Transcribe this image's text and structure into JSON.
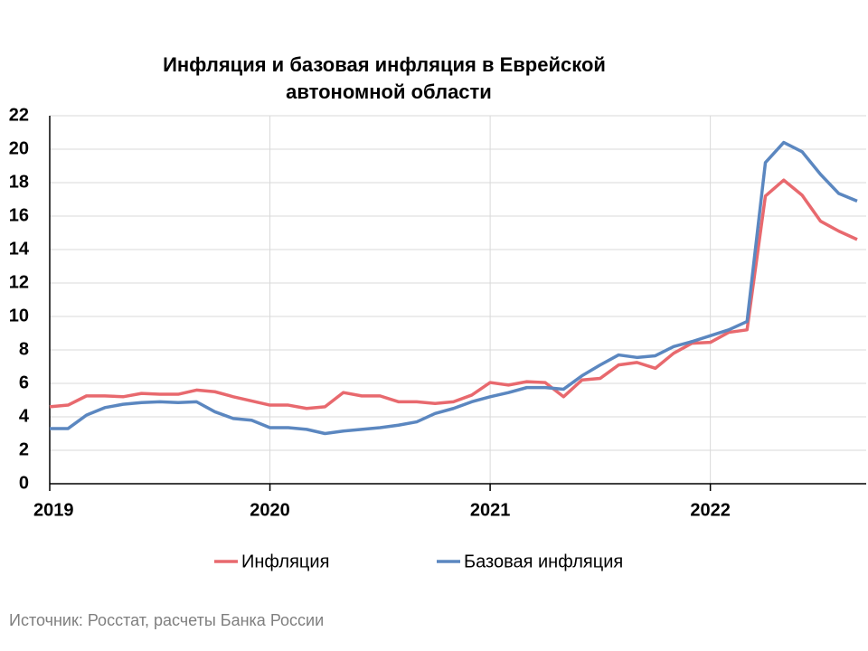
{
  "chart_data": {
    "type": "line",
    "title": [
      "Инфляция и базовая инфляция в Еврейской",
      "автономной области"
    ],
    "categories": [
      "2019",
      null,
      null,
      null,
      null,
      null,
      null,
      null,
      null,
      null,
      null,
      null,
      "2020",
      null,
      null,
      null,
      null,
      null,
      null,
      null,
      null,
      null,
      null,
      null,
      "2021",
      null,
      null,
      null,
      null,
      null,
      null,
      null,
      null,
      null,
      null,
      null,
      "2022",
      null,
      null,
      null,
      null,
      null,
      null,
      null,
      null
    ],
    "series": [
      {
        "name": "Инфляция",
        "color": "#e8696e",
        "values": [
          4.6,
          4.7,
          5.25,
          5.25,
          5.2,
          5.4,
          5.35,
          5.35,
          5.6,
          5.5,
          5.2,
          4.95,
          4.7,
          4.7,
          4.5,
          4.6,
          5.45,
          5.25,
          5.25,
          4.9,
          4.9,
          4.8,
          4.9,
          5.3,
          6.05,
          5.9,
          6.1,
          6.05,
          5.2,
          6.2,
          6.3,
          7.1,
          7.25,
          6.9,
          7.8,
          8.4,
          8.45,
          9.05,
          9.2,
          17.2,
          18.15,
          17.25,
          15.7,
          15.1,
          14.6
        ]
      },
      {
        "name": "Базовая инфляция",
        "color": "#5b87c0",
        "values": [
          3.3,
          3.3,
          4.1,
          4.55,
          4.75,
          4.85,
          4.9,
          4.85,
          4.9,
          4.3,
          3.9,
          3.8,
          3.35,
          3.35,
          3.25,
          3.0,
          3.15,
          3.25,
          3.35,
          3.5,
          3.7,
          4.2,
          4.5,
          4.9,
          5.2,
          5.45,
          5.75,
          5.75,
          5.65,
          6.45,
          7.1,
          7.7,
          7.55,
          7.65,
          8.2,
          8.5,
          8.85,
          9.2,
          9.7,
          19.2,
          20.4,
          19.85,
          18.5,
          17.35,
          16.9
        ]
      }
    ],
    "ylim": [
      0,
      22
    ],
    "yticks": [
      0,
      2,
      4,
      6,
      8,
      10,
      12,
      14,
      16,
      18,
      20,
      22
    ],
    "grid": true,
    "legend": "bottom"
  },
  "source": "Источник: Росстат, расчеты Банка России"
}
